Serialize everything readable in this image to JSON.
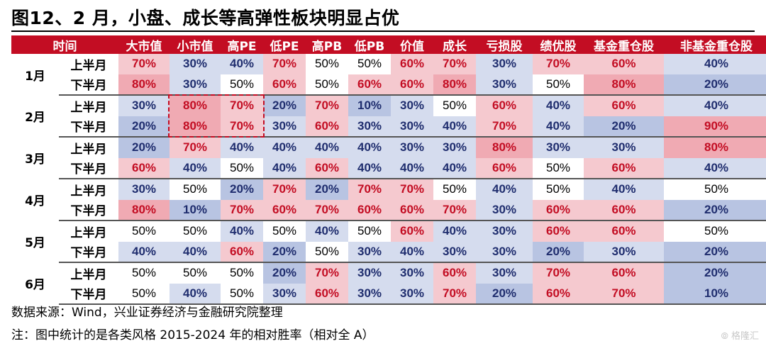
{
  "title": "图12、2 月，小盘、成长等高弹性板块明显占优",
  "table": {
    "headers": [
      "时间",
      "大市值",
      "小市值",
      "高PE",
      "低PE",
      "高PB",
      "低PB",
      "价值",
      "成长",
      "亏损股",
      "绩优股",
      "基金重仓股",
      "非基金重仓股"
    ],
    "months": [
      {
        "month": "1月",
        "rows": [
          {
            "half": "上半月",
            "values": [
              "70%",
              "30%",
              "40%",
              "70%",
              "50%",
              "50%",
              "60%",
              "70%",
              "30%",
              "70%",
              "60%",
              "40%"
            ]
          },
          {
            "half": "下半月",
            "values": [
              "80%",
              "30%",
              "50%",
              "60%",
              "50%",
              "60%",
              "60%",
              "80%",
              "30%",
              "50%",
              "80%",
              "20%"
            ]
          }
        ]
      },
      {
        "month": "2月",
        "rows": [
          {
            "half": "上半月",
            "values": [
              "30%",
              "80%",
              "70%",
              "20%",
              "70%",
              "10%",
              "30%",
              "50%",
              "60%",
              "40%",
              "60%",
              "40%"
            ]
          },
          {
            "half": "下半月",
            "values": [
              "20%",
              "80%",
              "70%",
              "30%",
              "60%",
              "30%",
              "30%",
              "40%",
              "70%",
              "40%",
              "20%",
              "90%"
            ]
          }
        ]
      },
      {
        "month": "3月",
        "rows": [
          {
            "half": "上半月",
            "values": [
              "20%",
              "70%",
              "40%",
              "40%",
              "40%",
              "40%",
              "30%",
              "30%",
              "80%",
              "30%",
              "30%",
              "80%"
            ]
          },
          {
            "half": "下半月",
            "values": [
              "60%",
              "40%",
              "50%",
              "40%",
              "60%",
              "40%",
              "40%",
              "40%",
              "60%",
              "50%",
              "60%",
              "40%"
            ]
          }
        ]
      },
      {
        "month": "4月",
        "rows": [
          {
            "half": "上半月",
            "values": [
              "30%",
              "50%",
              "20%",
              "70%",
              "20%",
              "70%",
              "70%",
              "50%",
              "40%",
              "50%",
              "40%",
              "50%"
            ]
          },
          {
            "half": "下半月",
            "values": [
              "80%",
              "10%",
              "70%",
              "60%",
              "70%",
              "60%",
              "60%",
              "70%",
              "30%",
              "60%",
              "60%",
              "20%"
            ]
          }
        ]
      },
      {
        "month": "5月",
        "rows": [
          {
            "half": "上半月",
            "values": [
              "50%",
              "50%",
              "40%",
              "50%",
              "40%",
              "50%",
              "60%",
              "40%",
              "30%",
              "60%",
              "60%",
              "50%"
            ]
          },
          {
            "half": "下半月",
            "values": [
              "40%",
              "40%",
              "60%",
              "20%",
              "50%",
              "30%",
              "40%",
              "30%",
              "30%",
              "20%",
              "30%",
              "20%"
            ]
          }
        ]
      },
      {
        "month": "6月",
        "rows": [
          {
            "half": "上半月",
            "values": [
              "50%",
              "50%",
              "50%",
              "20%",
              "70%",
              "30%",
              "30%",
              "60%",
              "30%",
              "70%",
              "60%",
              "20%"
            ]
          },
          {
            "half": "下半月",
            "values": [
              "50%",
              "40%",
              "50%",
              "30%",
              "60%",
              "30%",
              "30%",
              "70%",
              "20%",
              "60%",
              "70%",
              "10%"
            ]
          }
        ]
      }
    ]
  },
  "source": "数据来源：Wind，兴业证券经济与金融研究院整理",
  "note": "注：图中统计的是各类风格 2015-2024 年的相对胜率（相对全 A）",
  "watermark": "格隆汇",
  "colors": {
    "header_bg": "#c30d23",
    "high": "#c30d23",
    "low": "#1f2d6e",
    "highlight_border": "#c30d23"
  }
}
